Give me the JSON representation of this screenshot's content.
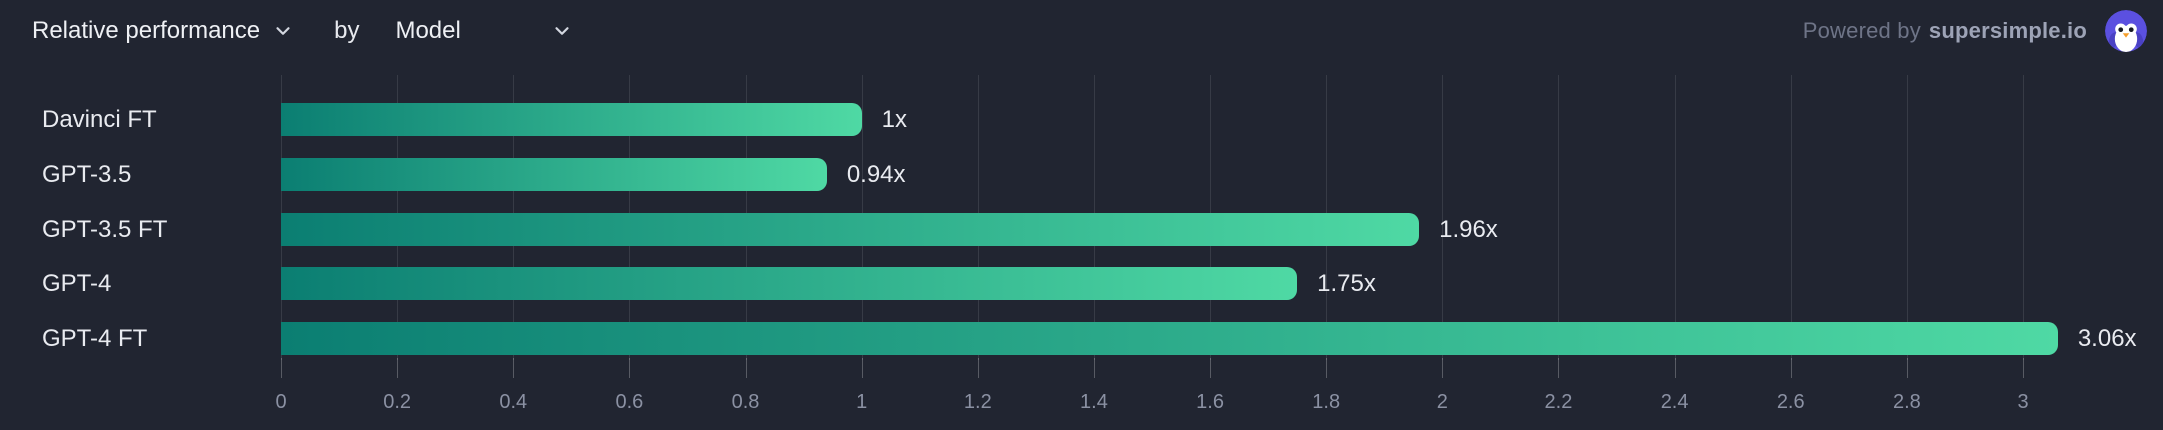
{
  "header": {
    "metric_dropdown": {
      "label": "Relative performance"
    },
    "by_label": "by",
    "dimension_dropdown": {
      "label": "Model"
    },
    "powered_by": {
      "prefix": "Powered by",
      "brand": "supersimple.io"
    }
  },
  "icons": {
    "chevron_down": "chevron-down",
    "penguin_logo": "penguin-mascot"
  },
  "colors": {
    "background": "#212531",
    "bar_gradient_start": "#0b7e72",
    "bar_gradient_end": "#4fd9a4",
    "text_primary": "#e9ebf0",
    "axis_text": "#8b91a3",
    "powered_prefix": "#6e7487",
    "powered_brand": "#9da3b6",
    "avatar_purple": "#5b50e0",
    "gridline": "rgba(255,255,255,0.10)"
  },
  "chart_data": {
    "type": "bar",
    "orientation": "horizontal",
    "title": "Relative performance by Model",
    "categories": [
      "Davinci FT",
      "GPT-3.5",
      "GPT-3.5 FT",
      "GPT-4",
      "GPT-4 FT"
    ],
    "values": [
      1,
      0.94,
      1.96,
      1.75,
      3.06
    ],
    "value_labels": [
      "1x",
      "0.94x",
      "1.96x",
      "1.75x",
      "3.06x"
    ],
    "xlabel": "",
    "ylabel": "",
    "xlim": [
      0,
      3.17
    ],
    "x_ticks": [
      0,
      0.2,
      0.4,
      0.6,
      0.8,
      1,
      1.2,
      1.4,
      1.6,
      1.8,
      2,
      2.2,
      2.4,
      2.6,
      2.8,
      3
    ],
    "x_tick_labels": [
      "0",
      "0.2",
      "0.4",
      "0.6",
      "0.8",
      "1",
      "1.2",
      "1.4",
      "1.6",
      "1.8",
      "2",
      "2.2",
      "2.4",
      "2.6",
      "2.8",
      "3"
    ],
    "grid": true,
    "legend": false
  }
}
